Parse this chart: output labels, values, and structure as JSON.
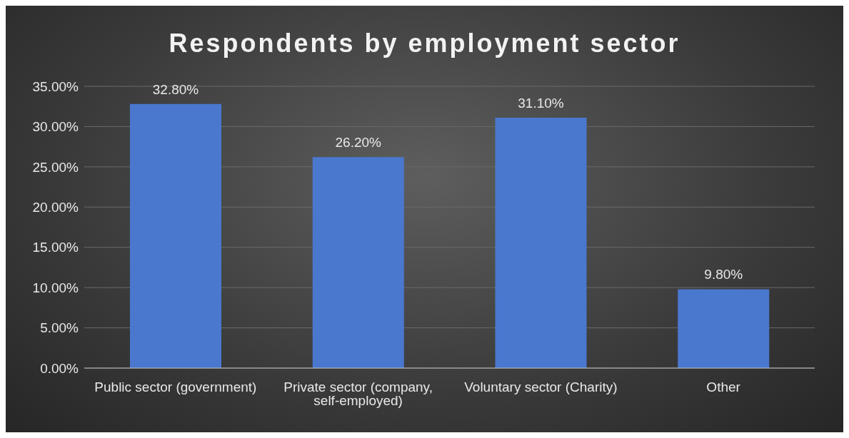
{
  "chart_data": {
    "type": "bar",
    "title": "Respondents by employment sector",
    "categories": [
      "Public sector (government)",
      "Private sector (company, self-employed)",
      "Voluntary sector (Charity)",
      "Other"
    ],
    "values": [
      32.8,
      26.2,
      31.1,
      9.8
    ],
    "color": "#4a78cf",
    "value_labels": [
      "32.80%",
      "26.20%",
      "31.10%",
      "9.80%"
    ],
    "ylim": [
      0,
      35
    ],
    "yticks": [
      {
        "value": 0,
        "label": "0.00%"
      },
      {
        "value": 5,
        "label": "5.00%"
      },
      {
        "value": 10,
        "label": "10.00%"
      },
      {
        "value": 15,
        "label": "15.00%"
      },
      {
        "value": 20,
        "label": "20.00%"
      },
      {
        "value": 25,
        "label": "25.00%"
      },
      {
        "value": 30,
        "label": "30.00%"
      },
      {
        "value": 35,
        "label": "35.00%"
      }
    ],
    "grid": "y",
    "legend": false
  }
}
